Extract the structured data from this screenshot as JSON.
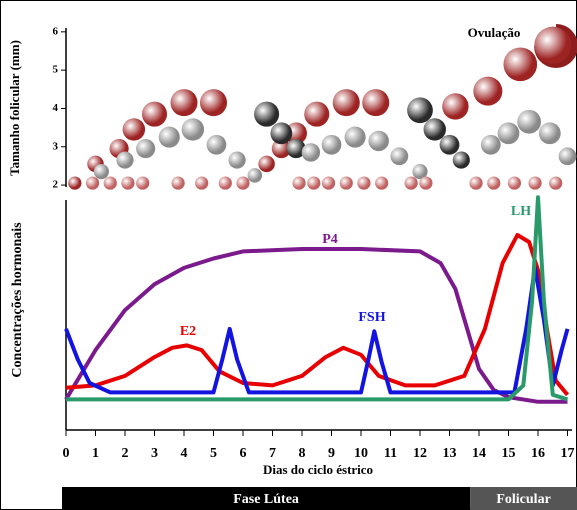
{
  "chart_data": [
    {
      "type": "scatter",
      "ylabel": "Tamanho folicular (mm)",
      "annotation": "Ovulação",
      "xlim": [
        0,
        17
      ],
      "ylim": [
        1.95,
        6.1
      ],
      "yticks": [
        2,
        3,
        4,
        5,
        6
      ],
      "series": [
        {
          "color": "#9e2424",
          "x": [
            0.3,
            1,
            1.8,
            2.3,
            3,
            4,
            5,
            6.8,
            7.3,
            7.8,
            8.5,
            9.5,
            10.5,
            13.2,
            14.3,
            15.4,
            16.5
          ],
          "values": [
            2,
            2.5,
            2.9,
            3.4,
            3.8,
            4.1,
            4.1,
            2.5,
            2.9,
            3.3,
            3.8,
            4.1,
            4.1,
            4,
            4.4,
            5.1,
            5.6
          ]
        },
        {
          "color": "#2a2a2a",
          "x": [
            6.8,
            7.3,
            7.8,
            12,
            12.5,
            13,
            13.4
          ],
          "values": [
            3.8,
            3.3,
            2.9,
            3.9,
            3.4,
            3,
            2.6
          ]
        },
        {
          "color": "#8a8a8a",
          "x": [
            1.2,
            2,
            2.7,
            3.5,
            4.3,
            5.1,
            5.8,
            6.4,
            8.3,
            9,
            9.8,
            10.6,
            11.3,
            12,
            14.4,
            15,
            15.7,
            16.4,
            17
          ],
          "values": [
            2.3,
            2.6,
            2.9,
            3.2,
            3.4,
            3,
            2.6,
            2.2,
            2.8,
            3,
            3.2,
            3.1,
            2.7,
            2.3,
            3,
            3.3,
            3.6,
            3.3,
            2.7
          ]
        },
        {
          "color": "#c06060",
          "x": [
            0.9,
            1.5,
            2.1,
            2.6,
            3.8,
            4.6,
            5.4,
            6,
            7.9,
            8.4,
            8.9,
            9.5,
            10.1,
            10.7,
            11.7,
            12.2,
            13.9,
            14.5,
            15.2,
            15.9,
            16.6
          ],
          "values": [
            2,
            2,
            2,
            2,
            2,
            2,
            2,
            2,
            2,
            2,
            2,
            2,
            2,
            2,
            2,
            2,
            2,
            2,
            2,
            2,
            2
          ]
        }
      ]
    },
    {
      "type": "line",
      "ylabel": "Concentrações hormonais",
      "xlabel": "Dias do ciclo éstrico",
      "xlim": [
        0,
        17
      ],
      "ylim": [
        0,
        100
      ],
      "xticks": [
        0,
        1,
        2,
        3,
        4,
        5,
        6,
        7,
        8,
        9,
        10,
        11,
        12,
        13,
        14,
        15,
        16,
        17
      ],
      "series": [
        {
          "name": "P4",
          "color": "#7b1a8c",
          "x": [
            0,
            1,
            2,
            3,
            4,
            5,
            6,
            8,
            10,
            12,
            12.7,
            13.2,
            13.6,
            14,
            14.5,
            15,
            16,
            17
          ],
          "values": [
            13,
            34,
            51,
            62,
            69,
            73,
            76,
            77,
            77,
            76,
            71,
            60,
            43,
            26,
            17,
            14,
            12,
            12
          ]
        },
        {
          "name": "E2",
          "color": "#e80000",
          "x": [
            0,
            1,
            2,
            3,
            3.6,
            4.1,
            4.6,
            5.2,
            6,
            7,
            8,
            8.8,
            9.4,
            10,
            10.6,
            11.5,
            12.5,
            13.5,
            14.2,
            14.8,
            15.3,
            15.7,
            16,
            16.3,
            16.6,
            17
          ],
          "values": [
            18,
            19,
            23,
            31,
            35,
            36,
            34,
            25,
            20,
            19,
            23,
            31,
            35,
            32,
            23,
            19,
            19,
            23,
            43,
            71,
            83,
            80,
            68,
            43,
            21,
            15
          ]
        },
        {
          "name": "FSH",
          "color": "#1414e0",
          "x": [
            0,
            0.4,
            0.8,
            1.5,
            5,
            5.3,
            5.55,
            5.8,
            6.2,
            10,
            10.25,
            10.45,
            10.7,
            11,
            15.2,
            15.6,
            15.9,
            16.2,
            16.5,
            16.8,
            17
          ],
          "values": [
            43,
            30,
            20,
            16,
            16,
            30,
            43,
            30,
            16,
            16,
            30,
            42,
            29,
            16,
            16,
            43,
            69,
            47,
            19,
            34,
            43
          ]
        },
        {
          "name": "LH",
          "color": "#2a9a6a",
          "x": [
            0,
            15,
            15.5,
            15.8,
            16,
            16.2,
            16.5,
            17
          ],
          "values": [
            13,
            13,
            19,
            55,
            99,
            55,
            15,
            13
          ]
        }
      ],
      "phases": [
        {
          "label": "Fase Lútea",
          "start": 0,
          "end": 13.7
        },
        {
          "label": "Folicular",
          "start": 13.7,
          "end": 17
        }
      ]
    }
  ]
}
